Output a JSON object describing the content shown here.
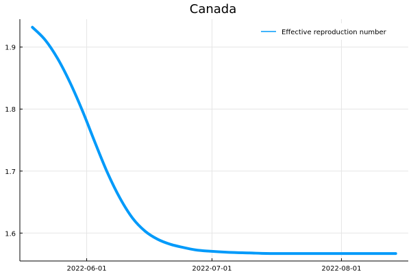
{
  "chart_data": {
    "type": "line",
    "title": "Canada",
    "xlabel": "",
    "ylabel": "",
    "x_ticks": [
      "2022-06-01",
      "2022-07-01",
      "2022-08-01"
    ],
    "y_ticks": [
      "1.6",
      "1.7",
      "1.8",
      "1.9"
    ],
    "xlim": [
      "2022-05-16",
      "2022-08-17"
    ],
    "ylim": [
      1.555,
      1.945
    ],
    "grid": true,
    "legend_position": "top-right",
    "series": [
      {
        "name": "Effective reproduction number",
        "color": "#009AFA",
        "x": [
          "2022-05-19",
          "2022-05-22",
          "2022-05-25",
          "2022-05-28",
          "2022-05-31",
          "2022-06-03",
          "2022-06-06",
          "2022-06-09",
          "2022-06-12",
          "2022-06-15",
          "2022-06-18",
          "2022-06-21",
          "2022-06-24",
          "2022-06-27",
          "2022-06-30",
          "2022-07-05",
          "2022-07-10",
          "2022-07-15",
          "2022-07-25",
          "2022-08-04",
          "2022-08-14"
        ],
        "values": [
          1.932,
          1.912,
          1.882,
          1.843,
          1.797,
          1.746,
          1.697,
          1.656,
          1.624,
          1.603,
          1.59,
          1.582,
          1.577,
          1.573,
          1.571,
          1.569,
          1.568,
          1.567,
          1.567,
          1.567,
          1.567
        ]
      }
    ]
  }
}
